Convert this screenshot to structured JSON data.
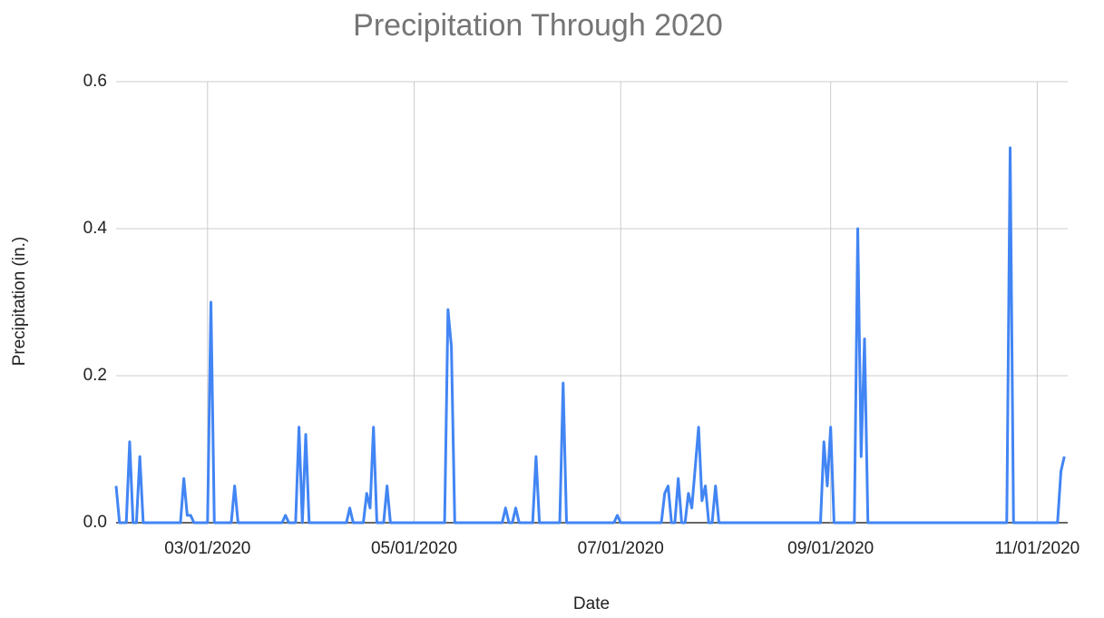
{
  "chart_data": {
    "type": "line",
    "title": "Precipitation Through 2020",
    "xlabel": "Date",
    "ylabel": "Precipitation (in.)",
    "x": [
      "02/03/2020",
      "02/04/2020",
      "02/06/2020",
      "02/07/2020",
      "02/08/2020",
      "02/09/2020",
      "02/10/2020",
      "02/11/2020",
      "02/22/2020",
      "02/23/2020",
      "02/24/2020",
      "02/25/2020",
      "02/26/2020",
      "03/01/2020",
      "03/02/2020",
      "03/03/2020",
      "03/08/2020",
      "03/09/2020",
      "03/10/2020",
      "03/23/2020",
      "03/24/2020",
      "03/25/2020",
      "03/27/2020",
      "03/28/2020",
      "03/29/2020",
      "03/30/2020",
      "03/31/2020",
      "04/11/2020",
      "04/12/2020",
      "04/13/2020",
      "04/16/2020",
      "04/17/2020",
      "04/18/2020",
      "04/19/2020",
      "04/20/2020",
      "04/22/2020",
      "04/23/2020",
      "04/24/2020",
      "05/10/2020",
      "05/11/2020",
      "05/12/2020",
      "05/13/2020",
      "05/27/2020",
      "05/28/2020",
      "05/29/2020",
      "05/30/2020",
      "05/31/2020",
      "06/01/2020",
      "06/05/2020",
      "06/06/2020",
      "06/07/2020",
      "06/13/2020",
      "06/14/2020",
      "06/15/2020",
      "06/29/2020",
      "06/30/2020",
      "07/01/2020",
      "07/13/2020",
      "07/14/2020",
      "07/15/2020",
      "07/16/2020",
      "07/17/2020",
      "07/18/2020",
      "07/19/2020",
      "07/20/2020",
      "07/21/2020",
      "07/22/2020",
      "07/24/2020",
      "07/25/2020",
      "07/26/2020",
      "07/27/2020",
      "07/28/2020",
      "07/29/2020",
      "07/30/2020",
      "08/29/2020",
      "08/30/2020",
      "08/31/2020",
      "09/01/2020",
      "09/02/2020",
      "09/08/2020",
      "09/09/2020",
      "09/10/2020",
      "09/11/2020",
      "09/12/2020",
      "10/23/2020",
      "10/24/2020",
      "10/25/2020",
      "11/07/2020",
      "11/08/2020",
      "11/09/2020"
    ],
    "values": [
      0.05,
      0,
      0,
      0.11,
      0,
      0,
      0.09,
      0,
      0,
      0.06,
      0.01,
      0.01,
      0,
      0,
      0.3,
      0,
      0,
      0.05,
      0,
      0,
      0.01,
      0,
      0,
      0.13,
      0,
      0.12,
      0,
      0,
      0.02,
      0,
      0,
      0.04,
      0.02,
      0.13,
      0,
      0,
      0.05,
      0,
      0,
      0.29,
      0.24,
      0,
      0,
      0.02,
      0,
      0,
      0.02,
      0,
      0,
      0.09,
      0,
      0,
      0.19,
      0,
      0,
      0.01,
      0,
      0,
      0.04,
      0.05,
      0,
      0,
      0.06,
      0,
      0,
      0.04,
      0.02,
      0.13,
      0.03,
      0.05,
      0,
      0,
      0.05,
      0,
      0,
      0.11,
      0.05,
      0.13,
      0,
      0,
      0.4,
      0.09,
      0.25,
      0,
      0,
      0.51,
      0,
      0,
      0.07,
      0.09
    ],
    "color": "#4285f4",
    "xlim": [
      "02/03/2020",
      "11/10/2020"
    ],
    "xticks": [
      "03/01/2020",
      "05/01/2020",
      "07/01/2020",
      "09/01/2020",
      "11/01/2020"
    ],
    "ylim": [
      0,
      0.6
    ],
    "yticks": [
      {
        "value": 0,
        "label": "0.0"
      },
      0.2,
      0.4,
      0.6
    ],
    "grid": true
  }
}
